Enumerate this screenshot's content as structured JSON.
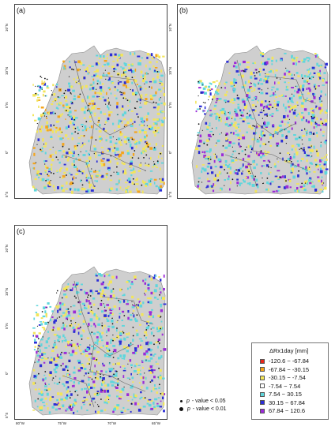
{
  "panels": [
    {
      "id": "a",
      "label": "(a)"
    },
    {
      "id": "b",
      "label": "(b)"
    },
    {
      "id": "c",
      "label": "(c)"
    }
  ],
  "axis_labels": {
    "lat": [
      "10°N",
      "10°N",
      "5°N",
      "0°",
      "5°S"
    ],
    "lon": [
      "80°W",
      "75°W",
      "70°W",
      "65°W"
    ]
  },
  "legend": {
    "title": "ΔRx1day [mm]",
    "items": [
      {
        "range": "-120.6 − -67.84",
        "color": "#e8271b"
      },
      {
        "range": "-67.84 − -30.15",
        "color": "#f4a51d"
      },
      {
        "range": "-30.15 − -7.54",
        "color": "#f2e55a"
      },
      {
        "range": "-7.54 − 7.54",
        "color": "#ffffff"
      },
      {
        "range": "7.54 − 30.15",
        "color": "#5fd6dc"
      },
      {
        "range": "30.15 − 67.84",
        "color": "#2c2ed6"
      },
      {
        "range": "67.84 − 120.6",
        "color": "#9b2bd8"
      }
    ]
  },
  "pvalue_legend": {
    "items": [
      {
        "p": "p",
        "text": "- value < 0.05"
      },
      {
        "p": "p",
        "text": "- value < 0.01"
      }
    ]
  }
}
